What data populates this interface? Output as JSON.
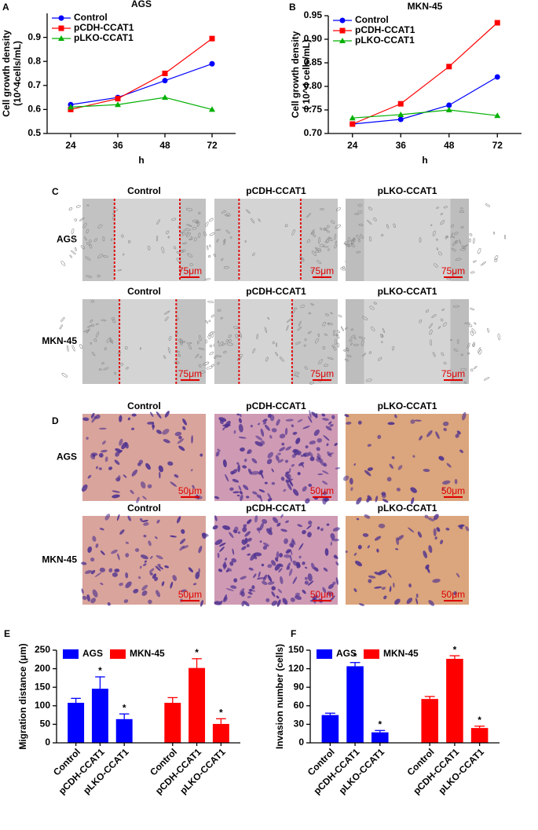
{
  "chart_data": [
    {
      "type": "line",
      "panel": "A",
      "title": "AGS",
      "ylabel": [
        "Cell growth density",
        "(10^4cells/mL)"
      ],
      "xlabel": "h",
      "categories": [
        "24",
        "36",
        "48",
        "72"
      ],
      "series": [
        {
          "name": "Control",
          "color": "#0000ff",
          "marker": "circle",
          "values": [
            0.62,
            0.65,
            0.72,
            0.79
          ]
        },
        {
          "name": "pCDH-CCAT1",
          "color": "#ff0000",
          "marker": "square",
          "values": [
            0.6,
            0.645,
            0.75,
            0.895
          ]
        },
        {
          "name": "pLKO-CCAT1",
          "color": "#00b000",
          "marker": "triangle",
          "values": [
            0.61,
            0.62,
            0.65,
            0.6
          ]
        }
      ],
      "ylim": [
        0.5,
        1.0
      ],
      "yticks": [
        0.5,
        0.6,
        0.7,
        0.8,
        0.9
      ],
      "legend": "top-left"
    },
    {
      "type": "line",
      "panel": "B",
      "title": "MKN-45",
      "ylabel": [
        "Cell growth density",
        "( 10^4 cells/mL)"
      ],
      "xlabel": "h",
      "categories": [
        "24",
        "36",
        "48",
        "72"
      ],
      "series": [
        {
          "name": "Control",
          "color": "#0000ff",
          "marker": "circle",
          "values": [
            0.72,
            0.73,
            0.76,
            0.82
          ]
        },
        {
          "name": "pCDH-CCAT1",
          "color": "#ff0000",
          "marker": "square",
          "values": [
            0.72,
            0.763,
            0.842,
            0.935
          ]
        },
        {
          "name": "pLKO-CCAT1",
          "color": "#00b000",
          "marker": "triangle",
          "values": [
            0.733,
            0.74,
            0.75,
            0.738
          ]
        }
      ],
      "ylim": [
        0.7,
        0.95
      ],
      "yticks": [
        {
          "value": 0.7,
          "label": "0.70"
        },
        0.75,
        {
          "value": 0.8,
          "label": "0.80"
        },
        0.85,
        {
          "value": 0.9,
          "label": "0.90"
        },
        0.95
      ],
      "legend": "top-left"
    },
    {
      "type": "bar",
      "panel": "E",
      "ylabel": "Migration distance (μm)",
      "categories": [
        "Control",
        "pCDH-CCAT1",
        "pLKO-CCAT1"
      ],
      "series": [
        {
          "name": "AGS",
          "color": "#0000ff",
          "values": [
            108,
            146,
            64
          ],
          "errors": [
            12,
            32,
            14
          ],
          "significance": [
            null,
            "*",
            "*"
          ]
        },
        {
          "name": "MKN-45",
          "color": "#ff0000",
          "values": [
            108,
            202,
            51
          ],
          "errors": [
            14,
            25,
            14
          ],
          "significance": [
            null,
            "*",
            "*"
          ]
        }
      ],
      "ylim": [
        0,
        250
      ],
      "yticks": [
        0,
        50,
        100,
        150,
        200,
        250
      ],
      "legend": "top-left"
    },
    {
      "type": "bar",
      "panel": "F",
      "ylabel": "Invasion number (cells)",
      "categories": [
        "Control",
        "pCDH-CCAT1",
        "pLKO-CCAT1"
      ],
      "series": [
        {
          "name": "AGS",
          "color": "#0000ff",
          "values": [
            45,
            124,
            17
          ],
          "errors": [
            3,
            6,
            3
          ],
          "significance": [
            null,
            "*",
            "*"
          ]
        },
        {
          "name": "MKN-45",
          "color": "#ff0000",
          "values": [
            71,
            136,
            24
          ],
          "errors": [
            4,
            5,
            3
          ],
          "significance": [
            null,
            "*",
            "*"
          ]
        }
      ],
      "ylim": [
        0,
        150
      ],
      "yticks": [
        0,
        30,
        60,
        90,
        120,
        150
      ],
      "legend": "top-left"
    }
  ],
  "wound_healing": {
    "panel": "C",
    "columns": [
      "Control",
      "pCDH-CCAT1",
      "pLKO-CCAT1"
    ],
    "rows": [
      "AGS",
      "MKN-45"
    ],
    "scale_bar": "75μm"
  },
  "transwell": {
    "panel": "D",
    "columns": [
      "Control",
      "pCDH-CCAT1",
      "pLKO-CCAT1"
    ],
    "rows": [
      "AGS",
      "MKN-45"
    ],
    "scale_bar": "50μm"
  }
}
